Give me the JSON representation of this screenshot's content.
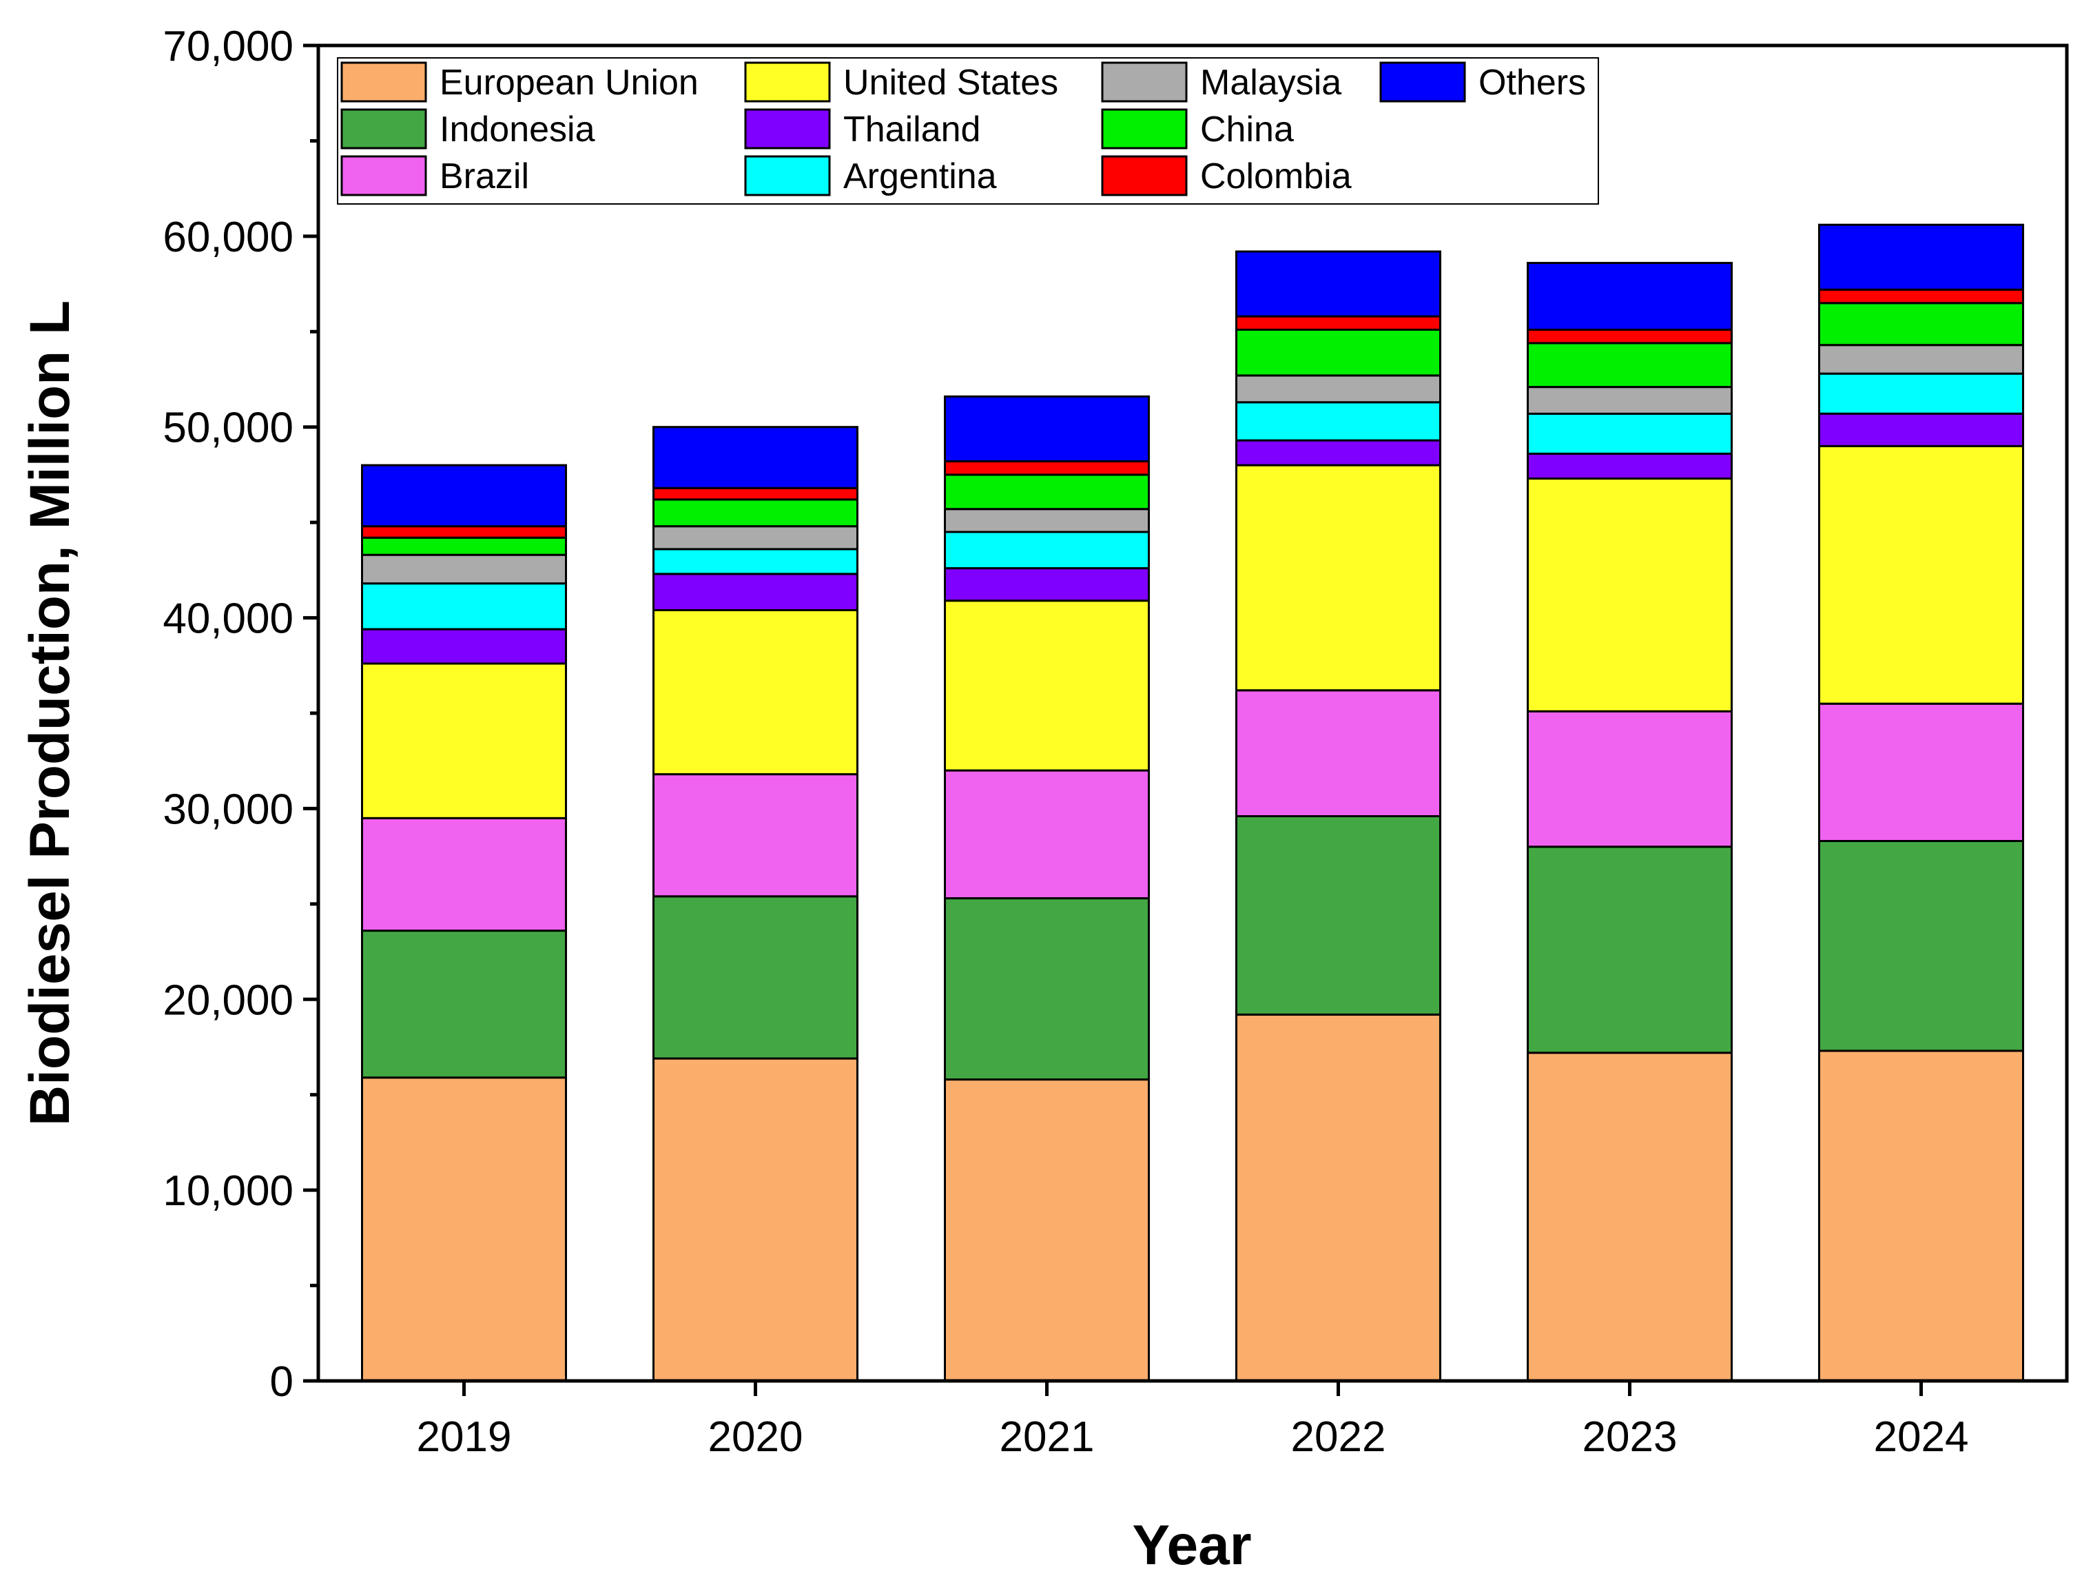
{
  "chart_data": {
    "type": "bar",
    "stacked": true,
    "title": "",
    "xlabel": "Year",
    "ylabel": "Biodiesel Production, Million L",
    "ylim": [
      0,
      70000
    ],
    "yticks": [
      0,
      10000,
      20000,
      30000,
      40000,
      50000,
      60000,
      70000
    ],
    "ytick_labels": [
      "0",
      "10,000",
      "20,000",
      "30,000",
      "40,000",
      "50,000",
      "60,000",
      "70,000"
    ],
    "categories": [
      "2019",
      "2020",
      "2021",
      "2022",
      "2023",
      "2024"
    ],
    "legend_position": "top-left",
    "series": [
      {
        "name": "European Union",
        "color": "#FBAE6B",
        "values": [
          15900,
          16900,
          15800,
          19200,
          17200,
          17300
        ]
      },
      {
        "name": "Indonesia",
        "color": "#43A843",
        "values": [
          7700,
          8500,
          9500,
          10400,
          10800,
          11000
        ]
      },
      {
        "name": "Brazil",
        "color": "#F062F0",
        "values": [
          5900,
          6400,
          6700,
          6600,
          7100,
          7200
        ]
      },
      {
        "name": "United States",
        "color": "#FFFF26",
        "values": [
          8100,
          8600,
          8900,
          11800,
          12200,
          13500
        ]
      },
      {
        "name": "Thailand",
        "color": "#8000FF",
        "values": [
          1800,
          1900,
          1700,
          1300,
          1300,
          1700
        ]
      },
      {
        "name": "Argentina",
        "color": "#00FFFF",
        "values": [
          2400,
          1300,
          1900,
          2000,
          2100,
          2100
        ]
      },
      {
        "name": "Malaysia",
        "color": "#ABABAB",
        "values": [
          1500,
          1200,
          1200,
          1400,
          1400,
          1500
        ]
      },
      {
        "name": "China",
        "color": "#00F000",
        "values": [
          900,
          1400,
          1800,
          2400,
          2300,
          2200
        ]
      },
      {
        "name": "Colombia",
        "color": "#FF0000",
        "values": [
          600,
          600,
          700,
          700,
          700,
          700
        ]
      },
      {
        "name": "Others",
        "color": "#0000FF",
        "values": [
          3200,
          3200,
          3400,
          3400,
          3500,
          3400
        ]
      }
    ],
    "legend_rows": [
      [
        "European Union",
        "United States",
        "Malaysia",
        "Others"
      ],
      [
        "Indonesia",
        "Thailand",
        "China"
      ],
      [
        "Brazil",
        "Argentina",
        "Colombia"
      ]
    ]
  }
}
